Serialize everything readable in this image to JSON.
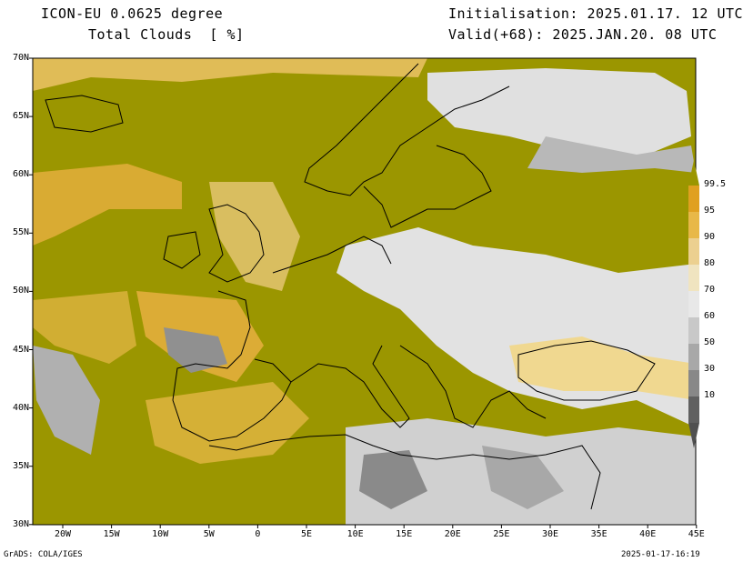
{
  "header": {
    "model_title": "ICON-EU 0.0625 degree",
    "field_title": "Total Clouds  [ %]",
    "initialisation": "Initialisation: 2025.01.17. 12 UTC",
    "valid": "Valid(+68): 2025.JAN.20. 08 UTC"
  },
  "footer": {
    "left": "GrADS: COLA/IGES",
    "right": "2025-01-17-16:19"
  },
  "map": {
    "lat_labels": [
      "70N",
      "65N",
      "60N",
      "55N",
      "50N",
      "45N",
      "40N",
      "35N",
      "30N"
    ],
    "lon_labels": [
      "20W",
      "15W",
      "10W",
      "5W",
      "0",
      "5E",
      "10E",
      "15E",
      "20E",
      "25E",
      "30E",
      "35E",
      "40E",
      "45E"
    ],
    "colors": {
      "full_cloud": "#9b9600",
      "clear": "#e8e8e8",
      "orange": "#e8b040",
      "light": "#f0d890",
      "grey": "#a8a8a8",
      "dark_grey": "#707070"
    }
  },
  "colorbar": {
    "labels": [
      "99.5",
      "95",
      "90",
      "80",
      "70",
      "60",
      "50",
      "30",
      "10"
    ],
    "colors": [
      "#e0a020",
      "#e8b848",
      "#ecd090",
      "#f0e4c0",
      "#e8e8e8",
      "#c8c8c8",
      "#a8a8a8",
      "#888888",
      "#606060"
    ]
  }
}
